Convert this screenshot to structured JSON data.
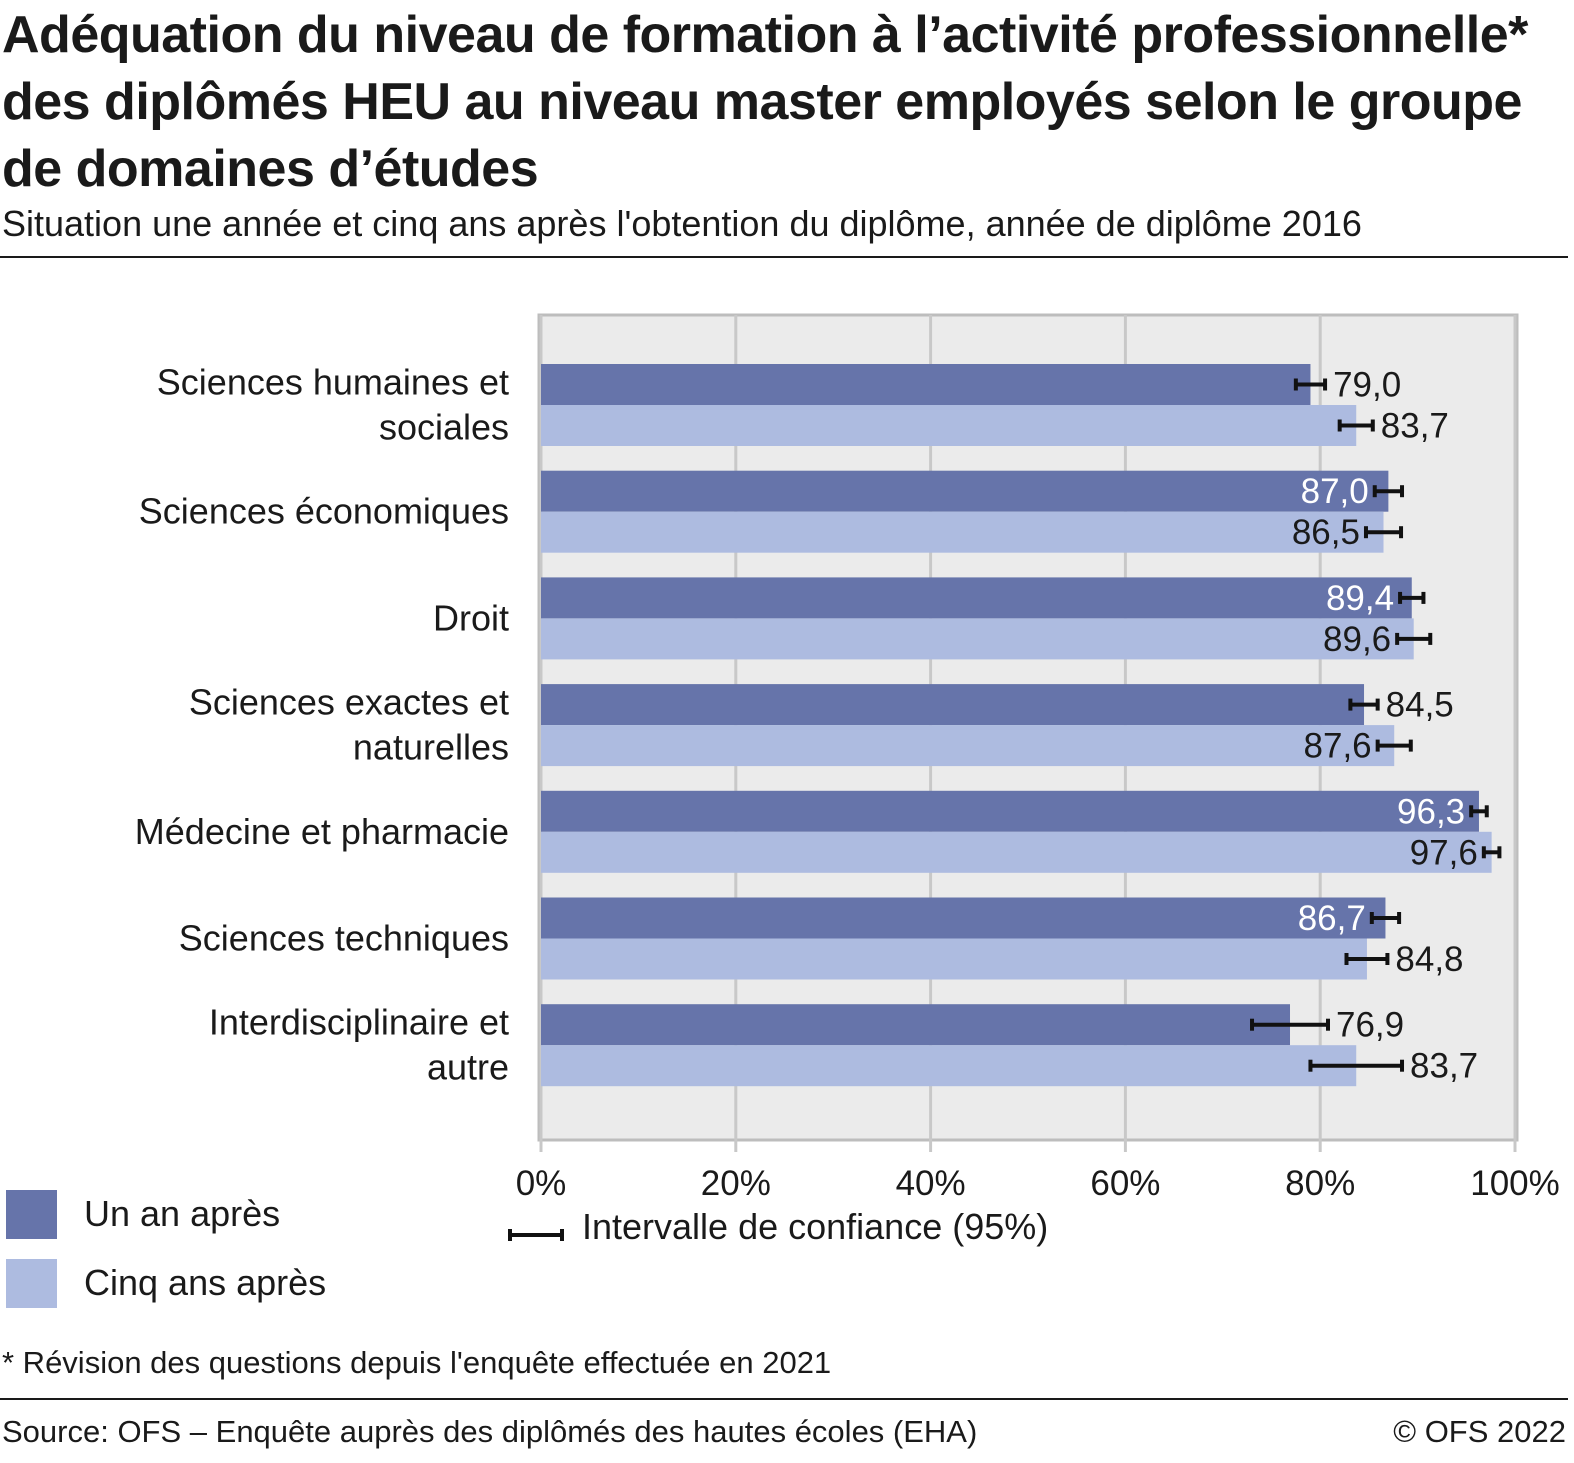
{
  "header": {
    "title": "Adéquation du niveau de formation à l’activité professionnelle* des diplômés HEU au niveau master employés selon le groupe de domaines d’études",
    "subtitle": "Situation une année et cinq ans après l'obtention du diplôme, année de diplôme 2016"
  },
  "legend": {
    "series1": "Un an après",
    "series2": "Cinq ans après",
    "ci": "Intervalle de confiance (95%)"
  },
  "footer": {
    "footnote": "* Révision des questions depuis l'enquête effectuée en 2021",
    "source": "Source: OFS – Enquête auprès des diplômés des hautes écoles (EHA)",
    "copyright": "© OFS 2022"
  },
  "colors": {
    "series1": "#6674aa",
    "series2": "#adbbe0",
    "plot_background": "#ebebeb",
    "grid": "#c8c8c8",
    "error_bar": "#111111"
  },
  "chart_data": {
    "type": "bar",
    "orientation": "horizontal",
    "categories": [
      [
        "Sciences humaines et",
        "sociales"
      ],
      [
        "Sciences économiques"
      ],
      [
        "Droit"
      ],
      [
        "Sciences exactes et",
        "naturelles"
      ],
      [
        "Médecine et pharmacie"
      ],
      [
        "Sciences techniques"
      ],
      [
        "Interdisciplinaire et",
        "autre"
      ]
    ],
    "series": [
      {
        "name": "Un an après",
        "values": [
          79.0,
          87.0,
          89.4,
          84.5,
          96.3,
          86.7,
          76.9
        ],
        "labels": [
          "79,0",
          "87,0",
          "89,4",
          "84,5",
          "96,3",
          "86,7",
          "76,9"
        ],
        "ci_low": [
          77.5,
          85.6,
          88.2,
          83.1,
          95.5,
          85.3,
          73.0
        ],
        "ci_high": [
          80.5,
          88.4,
          90.6,
          85.9,
          97.1,
          88.1,
          80.8
        ]
      },
      {
        "name": "Cinq ans après",
        "values": [
          83.7,
          86.5,
          89.6,
          87.6,
          97.6,
          84.8,
          83.7
        ],
        "labels": [
          "83,7",
          "86,5",
          "89,6",
          "87,6",
          "97,6",
          "84,8",
          "83,7"
        ],
        "ci_low": [
          82.0,
          84.7,
          87.9,
          85.9,
          96.8,
          82.7,
          79.0
        ],
        "ci_high": [
          85.4,
          88.3,
          91.3,
          89.3,
          98.4,
          86.9,
          88.4
        ]
      }
    ],
    "xlim": [
      0,
      100
    ],
    "xticks": [
      "0%",
      "20%",
      "40%",
      "60%",
      "80%",
      "100%"
    ],
    "grid": true,
    "legend_position": "bottom-left"
  }
}
